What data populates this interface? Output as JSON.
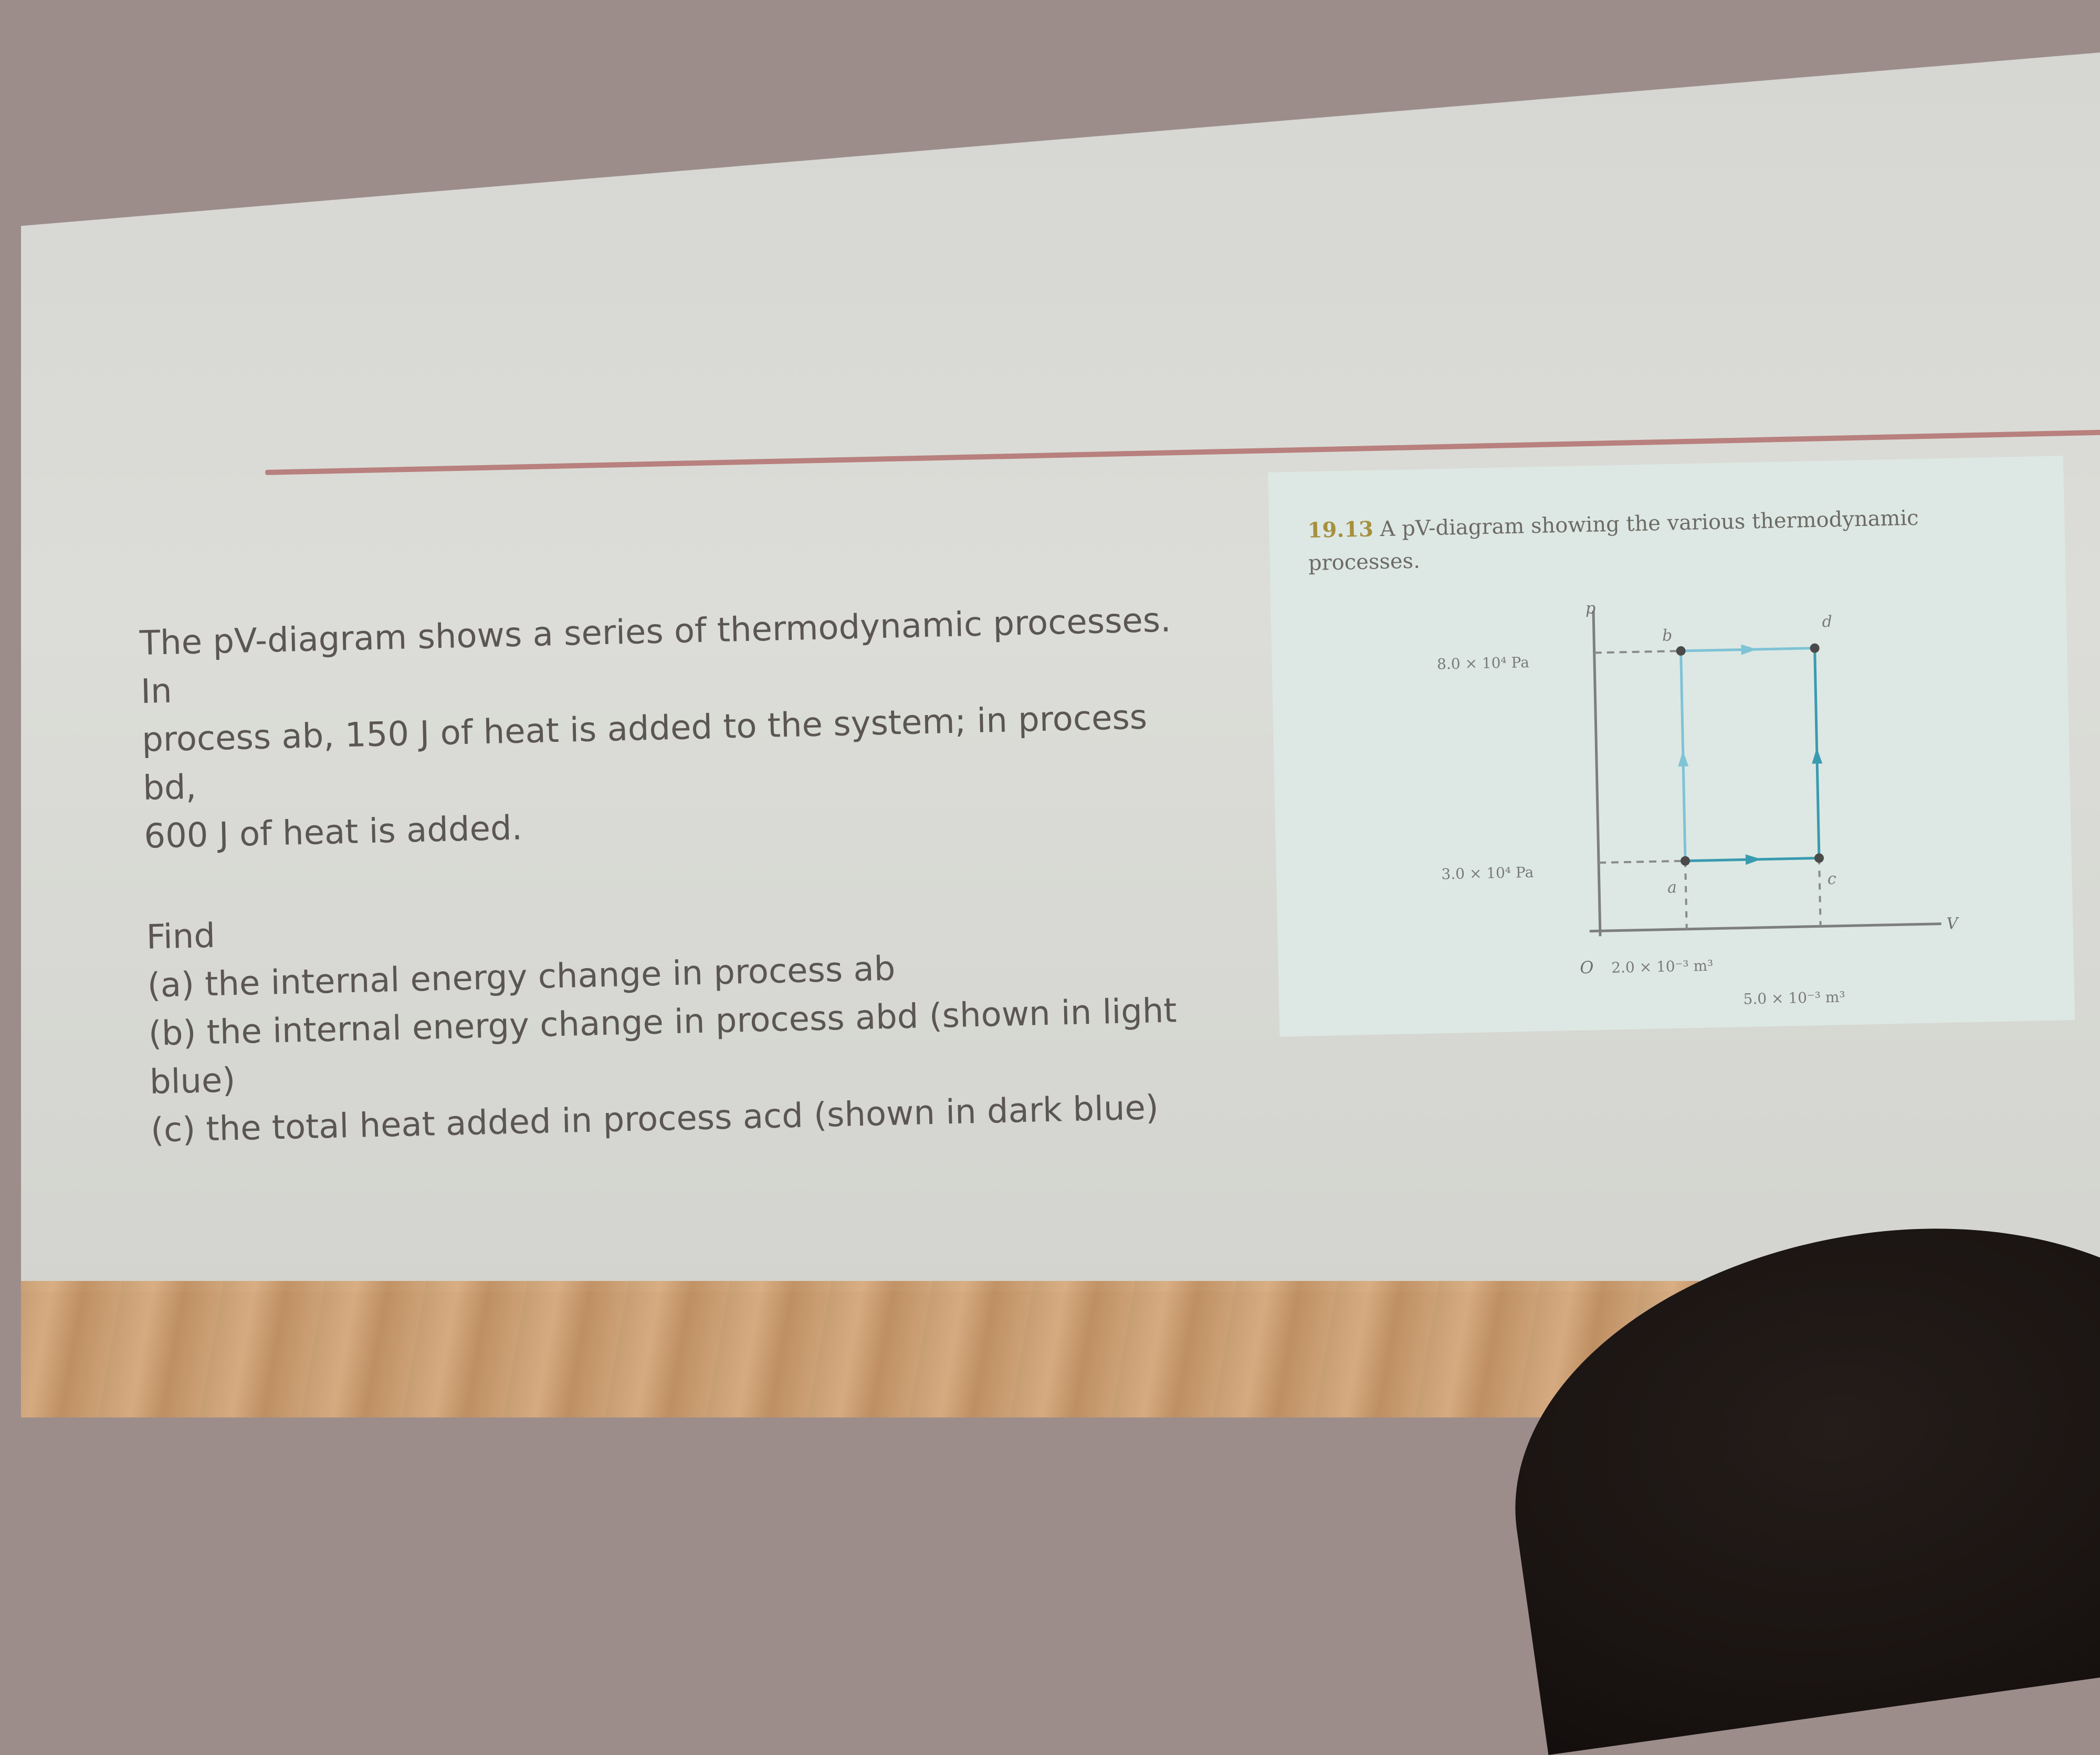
{
  "slide": {
    "problem_lines": [
      "The pV-diagram shows a series of thermodynamic processes. In",
      "process ab, 150 J of heat is added to the system; in process bd,",
      "600 J of heat is added."
    ],
    "find_label": "Find",
    "questions": [
      "(a) the internal energy change in process ab",
      "(b) the internal energy change in process abd (shown in light",
      "blue)",
      "(c) the total heat added in process acd (shown in dark blue)"
    ]
  },
  "figure": {
    "caption_number": "19.13",
    "caption_text": "A pV-diagram showing the various thermodynamic",
    "caption_text_2": "processes.",
    "axis_p": "p",
    "axis_v": "V",
    "origin": "O",
    "p_high": "8.0 × 10⁴ Pa",
    "p_low": "3.0 × 10⁴ Pa",
    "v_a": "2.0 × 10⁻³ m³",
    "v_c": "5.0 × 10⁻³ m³",
    "point_labels": [
      "a",
      "b",
      "c",
      "d"
    ],
    "colors": {
      "light_blue": "#7fc3d6",
      "dark_blue": "#3a9bb0"
    }
  }
}
